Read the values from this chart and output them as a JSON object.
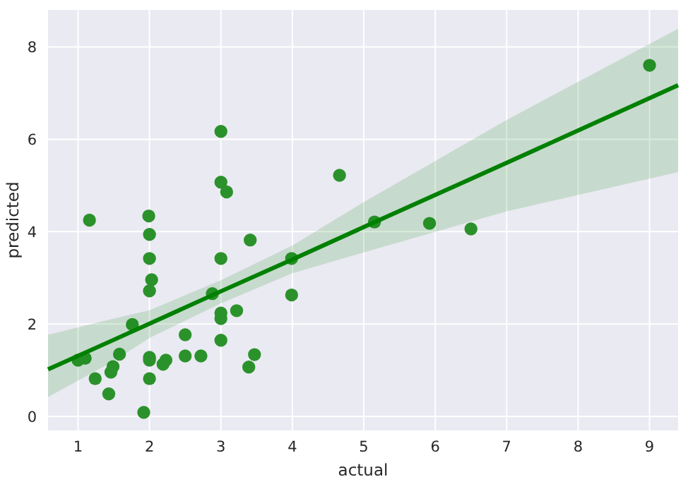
{
  "chart_data": {
    "type": "scatter",
    "xlabel": "actual",
    "ylabel": "predicted",
    "xlim": [
      0.58,
      9.4
    ],
    "ylim": [
      -0.3,
      8.8
    ],
    "xticks": [
      1,
      2,
      3,
      4,
      5,
      6,
      7,
      8,
      9
    ],
    "yticks": [
      0,
      2,
      4,
      6,
      8
    ],
    "grid": true,
    "series": [
      {
        "marker": "circle",
        "color": "#2b922b",
        "x": [
          1.0,
          1.1,
          1.16,
          1.24,
          1.43,
          1.46,
          1.49,
          1.58,
          1.76,
          1.92,
          1.99,
          2.0,
          2.0,
          2.03,
          2.0,
          2.0,
          2.0,
          2.0,
          2.19,
          2.23,
          2.5,
          2.5,
          2.72,
          2.88,
          3.0,
          3.0,
          3.08,
          3.0,
          3.0,
          3.0,
          3.0,
          3.22,
          3.41,
          3.39,
          3.47,
          3.99,
          3.99,
          4.66,
          5.15,
          5.92,
          6.5,
          9.0
        ],
        "values": [
          1.22,
          1.26,
          4.25,
          0.82,
          0.49,
          0.96,
          1.08,
          1.35,
          1.99,
          0.09,
          4.34,
          3.94,
          3.42,
          2.96,
          2.72,
          1.28,
          1.22,
          0.82,
          1.13,
          1.22,
          1.77,
          1.31,
          1.31,
          2.66,
          6.17,
          5.07,
          4.86,
          3.42,
          2.24,
          2.12,
          1.65,
          2.29,
          3.82,
          1.07,
          1.34,
          3.42,
          2.63,
          5.22,
          4.21,
          4.18,
          4.06,
          7.6
        ]
      },
      {
        "type": "line",
        "color": "#008000",
        "x": [
          0.58,
          1.5,
          2,
          3,
          4,
          5,
          7,
          9.4
        ],
        "values": [
          1.02,
          1.66,
          2.01,
          2.71,
          3.4,
          4.1,
          5.49,
          7.17
        ],
        "lower": [
          0.42,
          1.2,
          1.7,
          2.45,
          3.1,
          3.55,
          4.44,
          5.29
        ],
        "upper": [
          1.77,
          2.12,
          2.3,
          2.95,
          3.7,
          4.64,
          6.42,
          8.39
        ]
      }
    ]
  }
}
